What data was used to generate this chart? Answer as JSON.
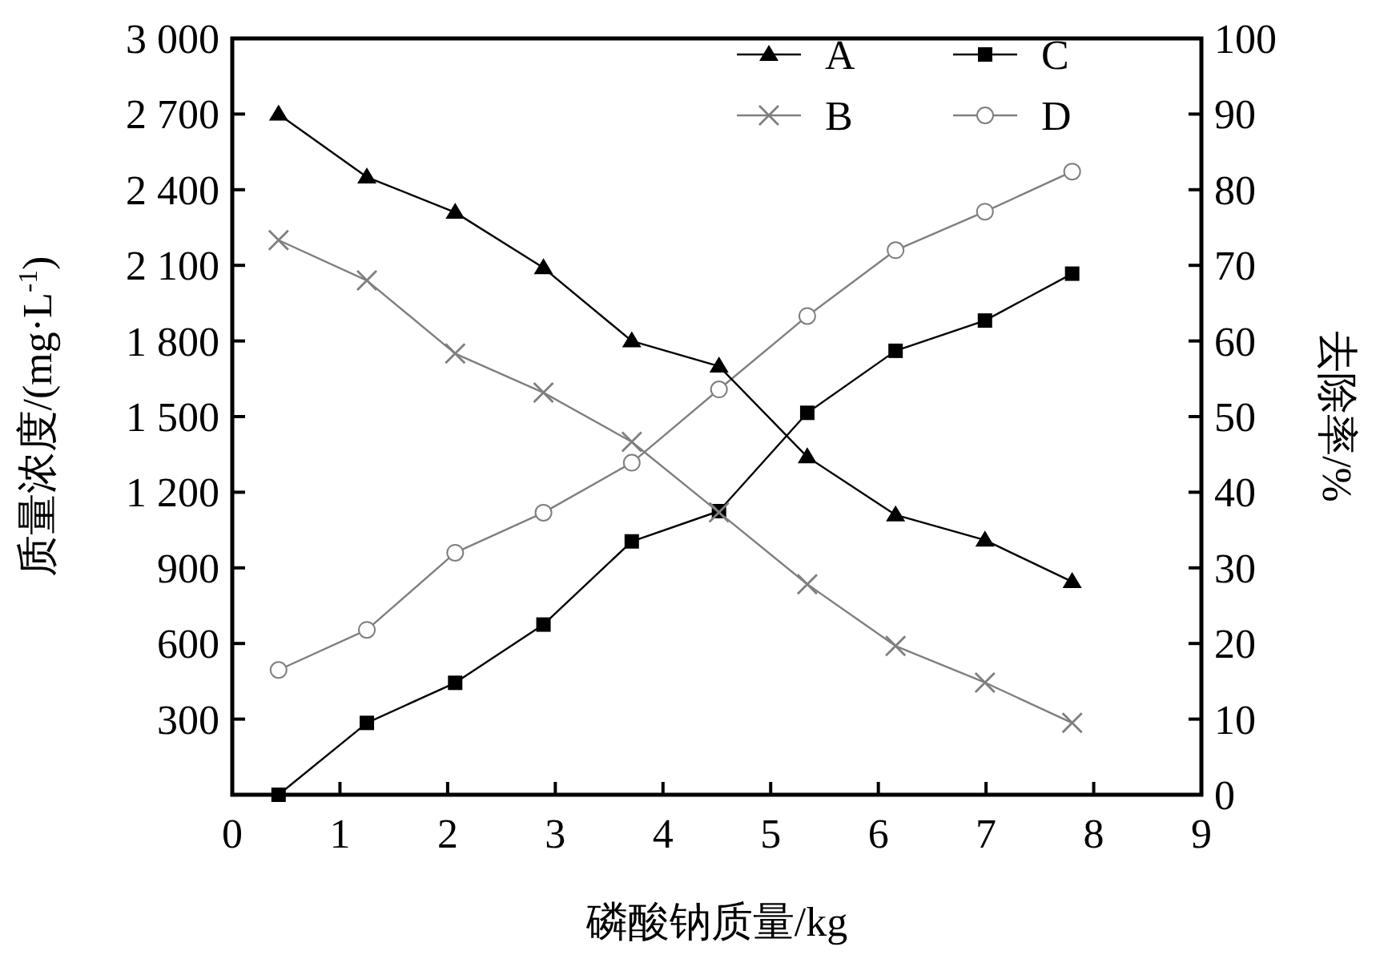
{
  "chart_data": {
    "type": "line",
    "xlabel": "磷酸钠质量/kg",
    "ylabel": "质量浓度/(mg·L$^{-1}$)",
    "y2label": "去除率/%",
    "x": [
      0.43,
      1.25,
      2.07,
      2.89,
      3.71,
      4.52,
      5.34,
      6.16,
      6.99,
      7.8
    ],
    "series": [
      {
        "name": "A",
        "color": "#000000",
        "marker": "triangle",
        "values": [
          2700,
          2450,
          2310,
          2090,
          1800,
          1700,
          1340,
          1110,
          1010,
          845
        ]
      },
      {
        "name": "B",
        "color": "#7f7f7f",
        "marker": "cross",
        "values": [
          2200,
          2040,
          1750,
          1595,
          1400,
          1120,
          835,
          590,
          445,
          285
        ]
      },
      {
        "name": "C",
        "color": "#000000",
        "marker": "square",
        "axis": "y2",
        "values": [
          0,
          9.5,
          14.8,
          22.5,
          33.5,
          37.5,
          50.5,
          58.7,
          62.7,
          68.9
        ]
      },
      {
        "name": "D",
        "color": "#7f7f7f",
        "marker": "circle",
        "axis": "y2",
        "values": [
          16.5,
          21.8,
          32,
          37.3,
          43.9,
          53.6,
          63.3,
          72,
          77.1,
          82.4
        ]
      }
    ],
    "xlim": [
      0,
      9
    ],
    "xticks": [
      0,
      1,
      2,
      3,
      4,
      5,
      6,
      7,
      8,
      9
    ],
    "ylim": [
      0,
      3000
    ],
    "yticks": [
      {
        "value": 300,
        "label": "300"
      },
      {
        "value": 600,
        "label": "600"
      },
      {
        "value": 900,
        "label": "900"
      },
      {
        "value": 1200,
        "label": "1 200"
      },
      {
        "value": 1500,
        "label": "1 500"
      },
      {
        "value": 1800,
        "label": "1 800"
      },
      {
        "value": 2100,
        "label": "2 100"
      },
      {
        "value": 2400,
        "label": "2 400"
      },
      {
        "value": 2700,
        "label": "2 700"
      },
      {
        "value": 3000,
        "label": "3 000"
      }
    ],
    "y2lim": [
      0,
      100
    ],
    "y2ticks": [
      0,
      10,
      20,
      30,
      40,
      50,
      60,
      70,
      80,
      90,
      100
    ],
    "legend": "top right",
    "grid": false,
    "line_style": "solid"
  }
}
